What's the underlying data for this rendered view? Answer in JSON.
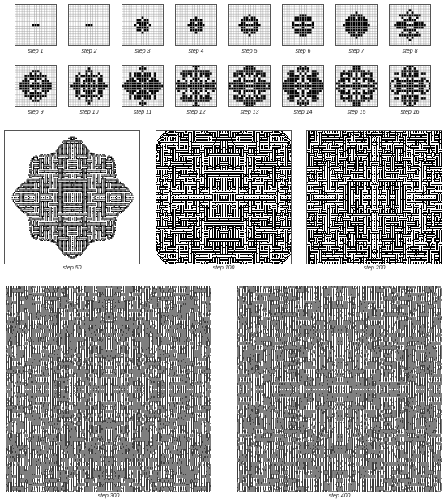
{
  "colors": {
    "background": "#ffffff",
    "cell_on": "#000000",
    "grid_line": "#9a9a9a",
    "frame": "#555555"
  },
  "rows": [
    {
      "kind": "small-grid",
      "steps": [
        {
          "step": 1,
          "label": "step 1"
        },
        {
          "step": 2,
          "label": "step 2"
        },
        {
          "step": 3,
          "label": "step 3"
        },
        {
          "step": 4,
          "label": "step 4"
        },
        {
          "step": 5,
          "label": "step 5"
        },
        {
          "step": 6,
          "label": "step 6"
        },
        {
          "step": 7,
          "label": "step 7"
        },
        {
          "step": 8,
          "label": "step 8"
        }
      ]
    },
    {
      "kind": "small-grid",
      "steps": [
        {
          "step": 9,
          "label": "step 9"
        },
        {
          "step": 10,
          "label": "step 10"
        },
        {
          "step": 11,
          "label": "step 11"
        },
        {
          "step": 12,
          "label": "step 12"
        },
        {
          "step": 13,
          "label": "step 13"
        },
        {
          "step": 14,
          "label": "step 14"
        },
        {
          "step": 15,
          "label": "step 15"
        },
        {
          "step": 16,
          "label": "step 16"
        }
      ]
    },
    {
      "kind": "large",
      "steps": [
        {
          "step": 50,
          "label": "step 50"
        },
        {
          "step": 100,
          "label": "step 100"
        },
        {
          "step": 200,
          "label": "step 200"
        }
      ]
    },
    {
      "kind": "large",
      "steps": [
        {
          "step": 300,
          "label": "step 300"
        },
        {
          "step": 400,
          "label": "step 400"
        }
      ]
    }
  ]
}
